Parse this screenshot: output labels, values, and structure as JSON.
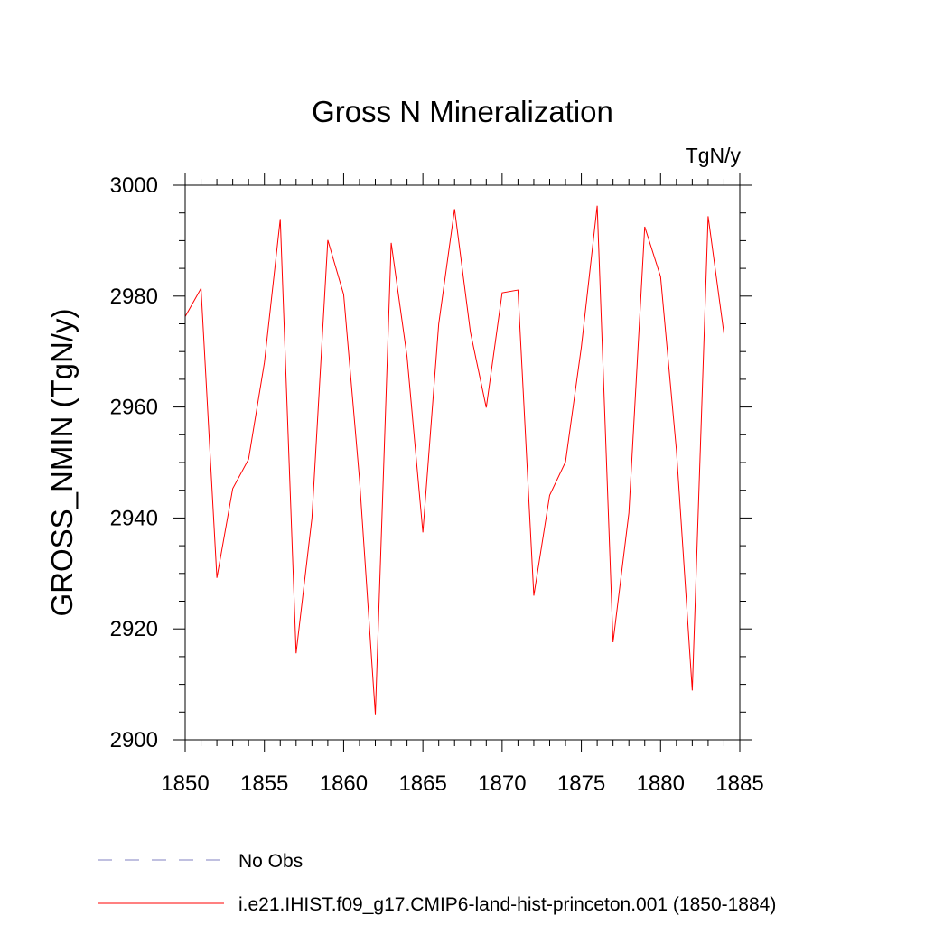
{
  "chart_data": {
    "type": "line",
    "title": "Gross N Mineralization",
    "units_label": "TgN/y",
    "xlabel": "",
    "ylabel": "GROSS_NMIN  (TgN/y)",
    "xlim": [
      1850,
      1885
    ],
    "ylim": [
      2900,
      3000
    ],
    "x_major_ticks": [
      1850,
      1855,
      1860,
      1865,
      1870,
      1875,
      1880,
      1885
    ],
    "x_minor_step": 1,
    "y_major_ticks": [
      2900,
      2920,
      2940,
      2960,
      2980,
      3000
    ],
    "y_minor_step": 5,
    "grid": false,
    "legend_position": "bottom-left",
    "series": [
      {
        "name": "No Obs",
        "color": "#8080c0",
        "dash": "dashed",
        "x": [],
        "y": []
      },
      {
        "name": "i.e21.IHIST.f09_g17.CMIP6-land-hist-princeton.001 (1850-1884)",
        "color": "#ff0000",
        "dash": "solid",
        "x": [
          1850,
          1851,
          1852,
          1853,
          1854,
          1855,
          1856,
          1857,
          1858,
          1859,
          1860,
          1861,
          1862,
          1863,
          1864,
          1865,
          1866,
          1867,
          1868,
          1869,
          1870,
          1871,
          1872,
          1873,
          1874,
          1875,
          1876,
          1877,
          1878,
          1879,
          1880,
          1881,
          1882,
          1883,
          1884
        ],
        "y": [
          2976.3,
          2981.4,
          2929.2,
          2945.3,
          2950.6,
          2968.0,
          2993.9,
          2915.6,
          2940.0,
          2990.1,
          2980.3,
          2947.0,
          2904.6,
          2989.6,
          2969.1,
          2937.4,
          2975.0,
          2995.7,
          2973.5,
          2959.9,
          2980.6,
          2981.1,
          2926.0,
          2944.1,
          2950.1,
          2970.8,
          2996.3,
          2917.6,
          2940.9,
          2992.5,
          2983.5,
          2952.2,
          2908.9,
          2994.4,
          2973.2
        ]
      }
    ]
  }
}
